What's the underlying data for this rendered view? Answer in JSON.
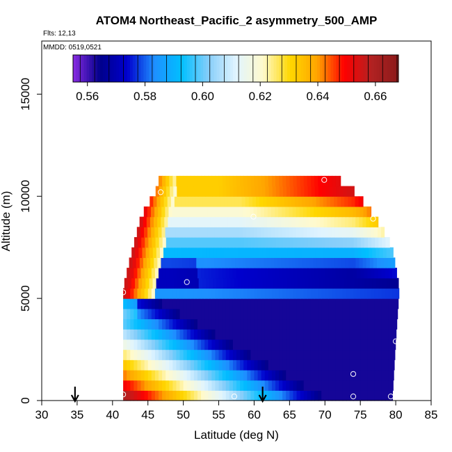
{
  "chart_data": {
    "type": "heatmap",
    "title": "ATOM4 Northeast_Pacific_2 asymmetry_500_AMP",
    "flights_text": "Flts: 12,13",
    "mmdd_text": "MMDD: 0519,0521",
    "xlabel": "Latitude (deg N)",
    "ylabel": "Altitude (m)",
    "xlim": [
      30,
      85
    ],
    "ylim": [
      0,
      17600
    ],
    "x_ticks": [
      30,
      35,
      40,
      45,
      50,
      55,
      60,
      65,
      70,
      75,
      80,
      85
    ],
    "y_ticks": [
      0,
      5000,
      10000,
      15000
    ],
    "colorbar": {
      "range": [
        0.555,
        0.668
      ],
      "ticks": [
        0.56,
        0.58,
        0.6,
        0.62,
        0.64,
        0.66
      ],
      "tick_labels": [
        "0.56",
        "0.58",
        "0.60",
        "0.62",
        "0.64",
        "0.66"
      ],
      "colors": [
        "#8a2be2",
        "#00008b",
        "#0000cd",
        "#1e90ff",
        "#00bfff",
        "#87cefa",
        "#e0f4ff",
        "#fffacd",
        "#ffd700",
        "#ffa500",
        "#ff0000",
        "#b22222",
        "#8b1a1a"
      ]
    },
    "grid": false,
    "curtain": {
      "lat_step": 0.5,
      "alt_step": 500,
      "right_edge_by_alt": [
        [
          0,
          79.5
        ],
        [
          3000,
          80
        ],
        [
          5500,
          80.5
        ],
        [
          7500,
          79.5
        ],
        [
          8500,
          78
        ],
        [
          9500,
          76
        ],
        [
          10300,
          74
        ],
        [
          10800,
          72
        ]
      ],
      "left_edge_by_alt": [
        [
          0,
          41.5
        ],
        [
          5500,
          41.5
        ],
        [
          7000,
          42.5
        ],
        [
          9000,
          44
        ],
        [
          10500,
          46.5
        ]
      ],
      "max_alt": 10700
    },
    "sample_points": [
      {
        "lat": 41.5,
        "alt": 300
      },
      {
        "lat": 57.2,
        "alt": 200
      },
      {
        "lat": 74.0,
        "alt": 200
      },
      {
        "lat": 79.3,
        "alt": 200
      },
      {
        "lat": 74.0,
        "alt": 1300
      },
      {
        "lat": 80.0,
        "alt": 2900
      },
      {
        "lat": 41.5,
        "alt": 5300
      },
      {
        "lat": 50.5,
        "alt": 5800
      },
      {
        "lat": 59.9,
        "alt": 9000
      },
      {
        "lat": 76.8,
        "alt": 8900
      },
      {
        "lat": 46.8,
        "alt": 10200
      },
      {
        "lat": 69.9,
        "alt": 10800
      }
    ],
    "arrows": [
      {
        "lat": 34.7
      },
      {
        "lat": 61.2
      }
    ]
  }
}
